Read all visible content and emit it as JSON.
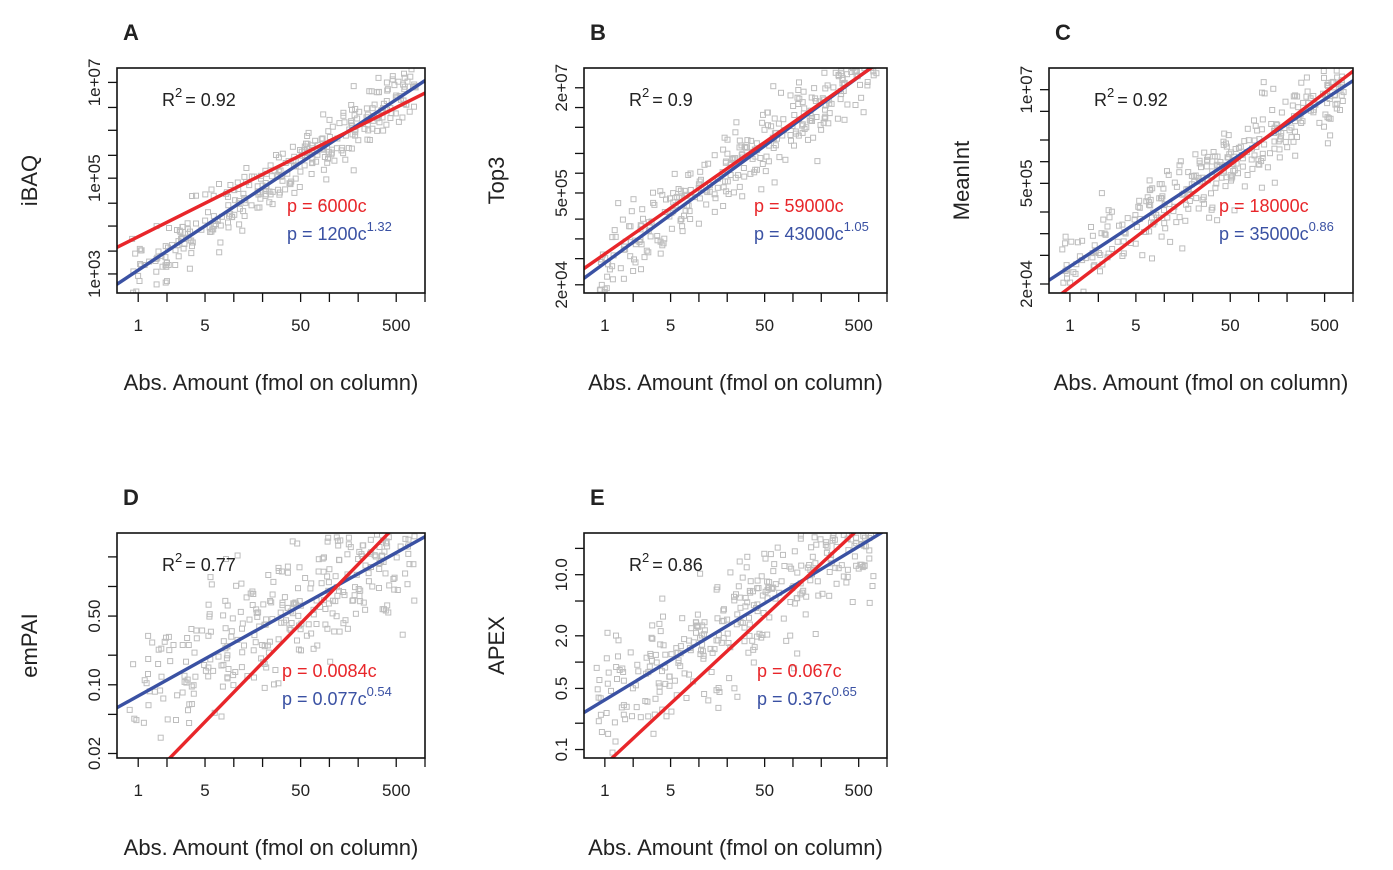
{
  "colors": {
    "points": "#bdbdbd",
    "linear_fit": "#e8262a",
    "power_fit": "#3a51a3",
    "text": "#222222"
  },
  "chart_data": [
    {
      "type": "scatter",
      "panel": "A",
      "log_x": true,
      "log_y": true,
      "xlabel": "Abs. Amount (fmol on column)",
      "ylabel": "iBAQ",
      "xlim": [
        0.6,
        1000
      ],
      "ylim": [
        400,
        20000000
      ],
      "x_ticks": [
        1,
        2,
        5,
        10,
        20,
        50,
        100,
        200,
        500,
        1000
      ],
      "x_tick_labels": [
        "1",
        "5",
        "50",
        "500"
      ],
      "x_tick_label_values": [
        1,
        5,
        50,
        500
      ],
      "y_ticks": [
        1000,
        3000,
        10000,
        30000,
        100000,
        300000,
        1000000,
        3000000,
        10000000
      ],
      "y_tick_labels": [
        "1e+03",
        "1e+05",
        "1e+07"
      ],
      "y_tick_label_values": [
        1000,
        100000,
        10000000
      ],
      "r2_label": "R",
      "r2_sup": "2",
      "r2_value": "= 0.92",
      "linear_fit": {
        "label": "p = 6000c",
        "a": 6000,
        "b": 1
      },
      "power_fit": {
        "label": "p = 1200c",
        "sup": "1.32",
        "a": 1200,
        "b": 1.32
      },
      "points": {
        "n": 330,
        "spread_sd": 0.3,
        "seed": 11
      }
    },
    {
      "type": "scatter",
      "panel": "B",
      "log_x": true,
      "log_y": true,
      "xlabel": "Abs. Amount (fmol on column)",
      "ylabel": "Top3",
      "xlim": [
        0.6,
        1000
      ],
      "ylim": [
        15000,
        40000000
      ],
      "x_ticks": [
        1,
        2,
        5,
        10,
        20,
        50,
        100,
        200,
        500,
        1000
      ],
      "x_tick_labels": [
        "1",
        "5",
        "50",
        "500"
      ],
      "x_tick_label_values": [
        1,
        5,
        50,
        500
      ],
      "y_ticks": [
        20000,
        50000,
        100000,
        200000,
        500000,
        1000000,
        2000000,
        5000000,
        10000000,
        20000000
      ],
      "y_tick_labels": [
        "2e+04",
        "5e+05",
        "2e+07"
      ],
      "y_tick_label_values": [
        20000,
        500000,
        20000000
      ],
      "r2_label": "R",
      "r2_sup": "2",
      "r2_value": "= 0.9",
      "linear_fit": {
        "label": "p = 59000c",
        "a": 59000,
        "b": 1
      },
      "power_fit": {
        "label": "p = 43000c",
        "sup": "1.05",
        "a": 43000,
        "b": 1.05
      },
      "points": {
        "n": 330,
        "spread_sd": 0.28,
        "seed": 23
      }
    },
    {
      "type": "scatter",
      "panel": "C",
      "log_x": true,
      "log_y": true,
      "xlabel": "Abs. Amount (fmol on column)",
      "ylabel": "MeanInt",
      "xlim": [
        0.6,
        1000
      ],
      "ylim": [
        15000,
        20000000
      ],
      "x_ticks": [
        1,
        2,
        5,
        10,
        20,
        50,
        100,
        200,
        500,
        1000
      ],
      "x_tick_labels": [
        "1",
        "5",
        "50",
        "500"
      ],
      "x_tick_label_values": [
        1,
        5,
        50,
        500
      ],
      "y_ticks": [
        20000,
        50000,
        100000,
        200000,
        500000,
        1000000,
        2000000,
        5000000,
        10000000
      ],
      "y_tick_labels": [
        "2e+04",
        "5e+05",
        "1e+07"
      ],
      "y_tick_label_values": [
        20000,
        500000,
        10000000
      ],
      "r2_label": "R",
      "r2_sup": "2",
      "r2_value": "= 0.92",
      "linear_fit": {
        "label": "p = 18000c",
        "a": 18000,
        "b": 1
      },
      "power_fit": {
        "label": "p = 35000c",
        "sup": "0.86",
        "a": 35000,
        "b": 0.86
      },
      "points": {
        "n": 330,
        "spread_sd": 0.26,
        "seed": 37
      }
    },
    {
      "type": "scatter",
      "panel": "D",
      "log_x": true,
      "log_y": true,
      "xlabel": "Abs. Amount (fmol on column)",
      "ylabel": "emPAI",
      "xlim": [
        0.6,
        1000
      ],
      "ylim": [
        0.018,
        3.5
      ],
      "x_ticks": [
        1,
        2,
        5,
        10,
        20,
        50,
        100,
        200,
        500,
        1000
      ],
      "x_tick_labels": [
        "1",
        "5",
        "50",
        "500"
      ],
      "x_tick_label_values": [
        1,
        5,
        50,
        500
      ],
      "y_ticks": [
        0.02,
        0.05,
        0.1,
        0.2,
        0.5,
        1,
        2
      ],
      "y_tick_labels": [
        "0.02",
        "0.10",
        "0.50"
      ],
      "y_tick_label_values": [
        0.02,
        0.1,
        0.5
      ],
      "r2_label": "R",
      "r2_sup": "2",
      "r2_value": "= 0.77",
      "linear_fit": {
        "label": "p = 0.0084c",
        "a": 0.0084,
        "b": 1
      },
      "power_fit": {
        "label": "p = 0.077c",
        "sup": "0.54",
        "a": 0.077,
        "b": 0.54
      },
      "points": {
        "n": 330,
        "spread_sd": 0.34,
        "seed": 41
      }
    },
    {
      "type": "scatter",
      "panel": "E",
      "log_x": true,
      "log_y": true,
      "xlabel": "Abs. Amount (fmol on column)",
      "ylabel": "APEX",
      "xlim": [
        0.6,
        1000
      ],
      "ylim": [
        0.08,
        30
      ],
      "x_ticks": [
        1,
        2,
        5,
        10,
        20,
        50,
        100,
        200,
        500,
        1000
      ],
      "x_tick_labels": [
        "1",
        "5",
        "50",
        "500"
      ],
      "x_tick_label_values": [
        1,
        5,
        50,
        500
      ],
      "y_ticks": [
        0.1,
        0.2,
        0.5,
        1,
        2,
        5,
        10,
        20
      ],
      "y_tick_labels": [
        "0.1",
        "0.5",
        "2.0",
        "10.0"
      ],
      "y_tick_label_values": [
        0.1,
        0.5,
        2,
        10
      ],
      "r2_label": "R",
      "r2_sup": "2",
      "r2_value": "= 0.86",
      "linear_fit": {
        "label": "p = 0.067c",
        "a": 0.067,
        "b": 1
      },
      "power_fit": {
        "label": "p = 0.37c",
        "sup": "0.65",
        "a": 0.37,
        "b": 0.65
      },
      "points": {
        "n": 330,
        "spread_sd": 0.33,
        "seed": 53
      }
    }
  ]
}
